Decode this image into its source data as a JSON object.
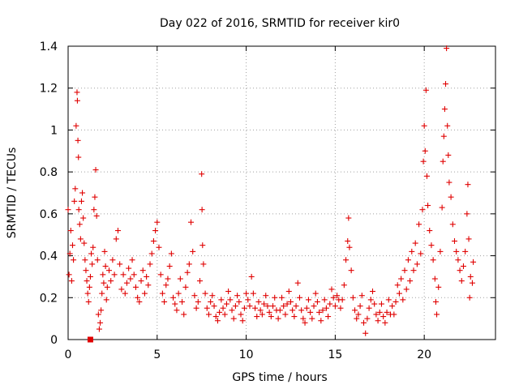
{
  "chart_data": {
    "type": "scatter",
    "title": "Day 022 of 2016, SRMTID for receiver kir0",
    "xlabel": "GPS time / hours",
    "ylabel": "SRMTID / TECUs",
    "xlim": [
      0,
      24
    ],
    "ylim": [
      0,
      1.4
    ],
    "xticks": [
      0,
      5,
      10,
      15,
      20
    ],
    "yticks": [
      0,
      0.2,
      0.4,
      0.6,
      0.8,
      1,
      1.2,
      1.4
    ],
    "xtick_labels": [
      "0",
      "5",
      "10",
      "15",
      "20"
    ],
    "ytick_labels": [
      "0",
      "0.2",
      "0.4",
      "0.6",
      "0.8",
      "1",
      "1.2",
      "1.4"
    ],
    "grid": true,
    "marker": "+",
    "color": "#e00000",
    "series": [
      {
        "name": "SRMTID",
        "marker": "+",
        "points": [
          [
            0.0,
            0.62
          ],
          [
            0.05,
            0.31
          ],
          [
            0.1,
            0.41
          ],
          [
            0.15,
            0.52
          ],
          [
            0.2,
            0.28
          ],
          [
            0.25,
            0.45
          ],
          [
            0.3,
            0.38
          ],
          [
            0.35,
            0.66
          ],
          [
            0.4,
            0.72
          ],
          [
            0.45,
            1.02
          ],
          [
            0.5,
            1.18
          ],
          [
            0.52,
            1.14
          ],
          [
            0.55,
            0.95
          ],
          [
            0.58,
            0.87
          ],
          [
            0.6,
            0.62
          ],
          [
            0.65,
            0.55
          ],
          [
            0.7,
            0.48
          ],
          [
            0.75,
            0.66
          ],
          [
            0.8,
            0.7
          ],
          [
            0.85,
            0.58
          ],
          [
            0.9,
            0.46
          ],
          [
            0.95,
            0.38
          ],
          [
            1.0,
            0.33
          ],
          [
            1.05,
            0.28
          ],
          [
            1.1,
            0.22
          ],
          [
            1.15,
            0.18
          ],
          [
            1.2,
            0.25
          ],
          [
            1.25,
            0.3
          ],
          [
            1.3,
            0.41
          ],
          [
            1.35,
            0.36
          ],
          [
            1.4,
            0.44
          ],
          [
            1.45,
            0.62
          ],
          [
            1.5,
            0.68
          ],
          [
            1.55,
            0.81
          ],
          [
            1.6,
            0.59
          ],
          [
            1.65,
            0.38
          ],
          [
            1.7,
            0.12
          ],
          [
            1.75,
            0.05
          ],
          [
            1.8,
            0.08
          ],
          [
            1.85,
            0.14
          ],
          [
            1.9,
            0.22
          ],
          [
            1.95,
            0.31
          ],
          [
            2.0,
            0.27
          ],
          [
            2.05,
            0.42
          ],
          [
            2.1,
            0.35
          ],
          [
            2.15,
            0.19
          ],
          [
            2.2,
            0.25
          ],
          [
            2.3,
            0.33
          ],
          [
            2.4,
            0.28
          ],
          [
            2.5,
            0.38
          ],
          [
            2.6,
            0.31
          ],
          [
            2.7,
            0.48
          ],
          [
            2.8,
            0.52
          ],
          [
            2.9,
            0.36
          ],
          [
            3.0,
            0.24
          ],
          [
            3.1,
            0.31
          ],
          [
            3.2,
            0.22
          ],
          [
            3.3,
            0.27
          ],
          [
            3.4,
            0.34
          ],
          [
            3.5,
            0.29
          ],
          [
            3.6,
            0.38
          ],
          [
            3.7,
            0.31
          ],
          [
            3.8,
            0.25
          ],
          [
            3.9,
            0.2
          ],
          [
            4.0,
            0.18
          ],
          [
            4.1,
            0.28
          ],
          [
            4.2,
            0.33
          ],
          [
            4.3,
            0.22
          ],
          [
            4.4,
            0.3
          ],
          [
            4.5,
            0.26
          ],
          [
            4.6,
            0.36
          ],
          [
            4.7,
            0.41
          ],
          [
            4.8,
            0.47
          ],
          [
            4.9,
            0.52
          ],
          [
            5.0,
            0.56
          ],
          [
            5.1,
            0.44
          ],
          [
            5.2,
            0.31
          ],
          [
            5.3,
            0.22
          ],
          [
            5.4,
            0.18
          ],
          [
            5.5,
            0.26
          ],
          [
            5.6,
            0.29
          ],
          [
            5.7,
            0.35
          ],
          [
            5.8,
            0.41
          ],
          [
            5.9,
            0.2
          ],
          [
            6.0,
            0.17
          ],
          [
            6.1,
            0.14
          ],
          [
            6.2,
            0.22
          ],
          [
            6.3,
            0.29
          ],
          [
            6.4,
            0.18
          ],
          [
            6.5,
            0.12
          ],
          [
            6.6,
            0.25
          ],
          [
            6.7,
            0.32
          ],
          [
            6.8,
            0.36
          ],
          [
            6.9,
            0.56
          ],
          [
            7.0,
            0.42
          ],
          [
            7.1,
            0.21
          ],
          [
            7.2,
            0.15
          ],
          [
            7.3,
            0.18
          ],
          [
            7.4,
            0.28
          ],
          [
            7.5,
            0.79
          ],
          [
            7.52,
            0.62
          ],
          [
            7.55,
            0.45
          ],
          [
            7.6,
            0.36
          ],
          [
            7.7,
            0.22
          ],
          [
            7.8,
            0.15
          ],
          [
            7.9,
            0.12
          ],
          [
            8.0,
            0.18
          ],
          [
            8.1,
            0.21
          ],
          [
            8.2,
            0.16
          ],
          [
            8.3,
            0.11
          ],
          [
            8.4,
            0.09
          ],
          [
            8.5,
            0.13
          ],
          [
            8.6,
            0.19
          ],
          [
            8.7,
            0.15
          ],
          [
            8.8,
            0.12
          ],
          [
            8.9,
            0.17
          ],
          [
            9.0,
            0.23
          ],
          [
            9.1,
            0.19
          ],
          [
            9.2,
            0.14
          ],
          [
            9.3,
            0.1
          ],
          [
            9.4,
            0.16
          ],
          [
            9.5,
            0.21
          ],
          [
            9.6,
            0.18
          ],
          [
            9.7,
            0.12
          ],
          [
            9.8,
            0.09
          ],
          [
            9.9,
            0.15
          ],
          [
            10.0,
            0.22
          ],
          [
            10.1,
            0.19
          ],
          [
            10.2,
            0.16
          ],
          [
            10.3,
            0.3
          ],
          [
            10.4,
            0.22
          ],
          [
            10.5,
            0.15
          ],
          [
            10.6,
            0.11
          ],
          [
            10.7,
            0.18
          ],
          [
            10.8,
            0.14
          ],
          [
            10.9,
            0.12
          ],
          [
            11.0,
            0.17
          ],
          [
            11.1,
            0.21
          ],
          [
            11.2,
            0.16
          ],
          [
            11.3,
            0.13
          ],
          [
            11.4,
            0.11
          ],
          [
            11.5,
            0.16
          ],
          [
            11.6,
            0.2
          ],
          [
            11.7,
            0.14
          ],
          [
            11.8,
            0.1
          ],
          [
            11.9,
            0.14
          ],
          [
            12.0,
            0.2
          ],
          [
            12.1,
            0.16
          ],
          [
            12.2,
            0.12
          ],
          [
            12.3,
            0.17
          ],
          [
            12.4,
            0.23
          ],
          [
            12.5,
            0.18
          ],
          [
            12.6,
            0.14
          ],
          [
            12.7,
            0.11
          ],
          [
            12.8,
            0.16
          ],
          [
            12.9,
            0.27
          ],
          [
            13.0,
            0.2
          ],
          [
            13.1,
            0.14
          ],
          [
            13.2,
            0.1
          ],
          [
            13.3,
            0.08
          ],
          [
            13.4,
            0.15
          ],
          [
            13.5,
            0.19
          ],
          [
            13.6,
            0.13
          ],
          [
            13.7,
            0.1
          ],
          [
            13.8,
            0.16
          ],
          [
            13.9,
            0.22
          ],
          [
            14.0,
            0.18
          ],
          [
            14.1,
            0.13
          ],
          [
            14.2,
            0.09
          ],
          [
            14.3,
            0.14
          ],
          [
            14.4,
            0.19
          ],
          [
            14.5,
            0.15
          ],
          [
            14.6,
            0.11
          ],
          [
            14.7,
            0.17
          ],
          [
            14.8,
            0.24
          ],
          [
            14.9,
            0.2
          ],
          [
            15.0,
            0.16
          ],
          [
            15.1,
            0.21
          ],
          [
            15.2,
            0.19
          ],
          [
            15.3,
            0.15
          ],
          [
            15.4,
            0.19
          ],
          [
            15.5,
            0.26
          ],
          [
            15.6,
            0.38
          ],
          [
            15.7,
            0.47
          ],
          [
            15.75,
            0.58
          ],
          [
            15.8,
            0.44
          ],
          [
            15.9,
            0.33
          ],
          [
            16.0,
            0.2
          ],
          [
            16.1,
            0.14
          ],
          [
            16.2,
            0.1
          ],
          [
            16.3,
            0.12
          ],
          [
            16.4,
            0.16
          ],
          [
            16.5,
            0.21
          ],
          [
            16.6,
            0.08
          ],
          [
            16.7,
            0.03
          ],
          [
            16.8,
            0.1
          ],
          [
            16.9,
            0.15
          ],
          [
            17.0,
            0.19
          ],
          [
            17.1,
            0.23
          ],
          [
            17.2,
            0.17
          ],
          [
            17.3,
            0.12
          ],
          [
            17.4,
            0.09
          ],
          [
            17.5,
            0.13
          ],
          [
            17.6,
            0.17
          ],
          [
            17.7,
            0.11
          ],
          [
            17.8,
            0.08
          ],
          [
            17.9,
            0.13
          ],
          [
            18.0,
            0.19
          ],
          [
            18.1,
            0.12
          ],
          [
            18.2,
            0.16
          ],
          [
            18.3,
            0.12
          ],
          [
            18.4,
            0.18
          ],
          [
            18.5,
            0.26
          ],
          [
            18.6,
            0.22
          ],
          [
            18.7,
            0.29
          ],
          [
            18.8,
            0.19
          ],
          [
            18.9,
            0.33
          ],
          [
            19.0,
            0.24
          ],
          [
            19.1,
            0.38
          ],
          [
            19.2,
            0.28
          ],
          [
            19.3,
            0.42
          ],
          [
            19.4,
            0.33
          ],
          [
            19.5,
            0.46
          ],
          [
            19.6,
            0.36
          ],
          [
            19.7,
            0.55
          ],
          [
            19.8,
            0.41
          ],
          [
            19.9,
            0.62
          ],
          [
            19.95,
            0.85
          ],
          [
            20.0,
            1.02
          ],
          [
            20.05,
            0.9
          ],
          [
            20.1,
            1.19
          ],
          [
            20.15,
            0.78
          ],
          [
            20.2,
            0.64
          ],
          [
            20.3,
            0.52
          ],
          [
            20.4,
            0.45
          ],
          [
            20.5,
            0.38
          ],
          [
            20.6,
            0.29
          ],
          [
            20.65,
            0.18
          ],
          [
            20.7,
            0.12
          ],
          [
            20.8,
            0.25
          ],
          [
            20.9,
            0.42
          ],
          [
            21.0,
            0.63
          ],
          [
            21.05,
            0.85
          ],
          [
            21.1,
            0.97
          ],
          [
            21.15,
            1.1
          ],
          [
            21.2,
            1.22
          ],
          [
            21.25,
            1.39
          ],
          [
            21.3,
            1.02
          ],
          [
            21.35,
            0.88
          ],
          [
            21.4,
            0.75
          ],
          [
            21.5,
            0.68
          ],
          [
            21.6,
            0.55
          ],
          [
            21.7,
            0.47
          ],
          [
            21.8,
            0.42
          ],
          [
            21.9,
            0.38
          ],
          [
            22.0,
            0.33
          ],
          [
            22.1,
            0.28
          ],
          [
            22.2,
            0.35
          ],
          [
            22.3,
            0.42
          ],
          [
            22.4,
            0.6
          ],
          [
            22.45,
            0.74
          ],
          [
            22.5,
            0.48
          ],
          [
            22.55,
            0.2
          ],
          [
            22.6,
            0.3
          ],
          [
            22.7,
            0.27
          ],
          [
            22.75,
            0.37
          ]
        ]
      }
    ],
    "legend_marker_label": "",
    "origin_marker": {
      "x": 1.25,
      "y": 0
    }
  }
}
